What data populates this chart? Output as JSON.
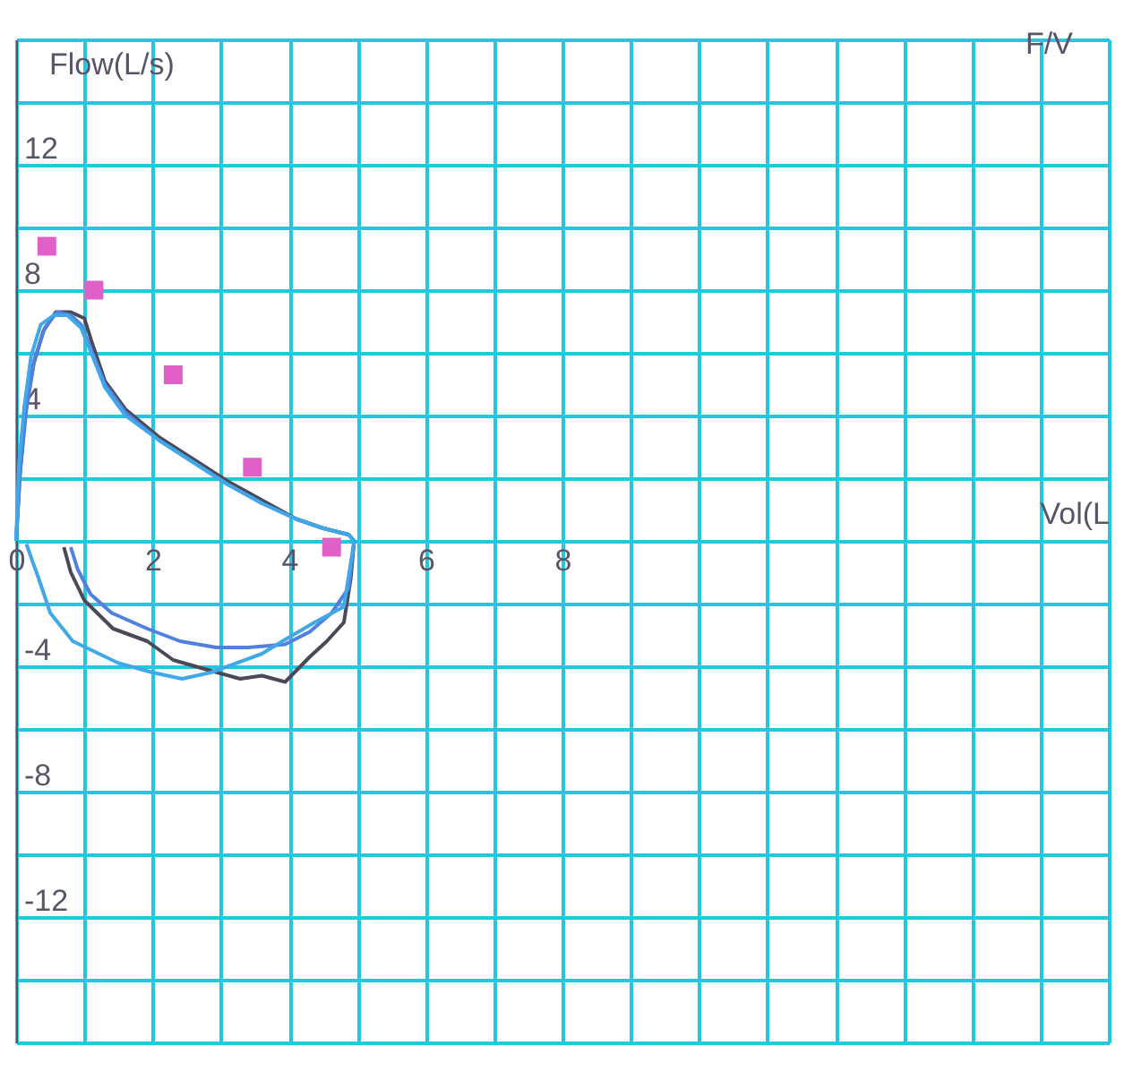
{
  "chart_data": {
    "type": "line",
    "title": "F/V",
    "xlabel": "Vol(L",
    "ylabel": "Flow(L/s)",
    "xlim": [
      0,
      16
    ],
    "xticks": [
      0,
      {
        "value": 1,
        "label": null
      },
      2,
      {
        "value": 3,
        "label": null
      },
      4,
      {
        "value": 5,
        "label": null
      },
      6,
      {
        "value": 7,
        "label": null
      },
      8,
      {
        "value": 9,
        "label": null
      },
      {
        "value": 10,
        "label": null
      },
      {
        "value": 11,
        "label": null
      },
      {
        "value": 12,
        "label": null
      },
      {
        "value": 13,
        "label": null
      },
      {
        "value": 14,
        "label": null
      },
      {
        "value": 15,
        "label": null
      },
      {
        "value": 16,
        "label": null
      }
    ],
    "ylim": [
      -16,
      16
    ],
    "yticks": [
      {
        "value": -16,
        "label": null
      },
      {
        "value": -14,
        "label": null
      },
      -12,
      {
        "value": -10,
        "label": null
      },
      -8,
      {
        "value": -6,
        "label": null
      },
      -4,
      {
        "value": -2,
        "label": null
      },
      {
        "value": 0,
        "label": null
      },
      {
        "value": 2,
        "label": null
      },
      4,
      {
        "value": 6,
        "label": null
      },
      8,
      {
        "value": 10,
        "label": null
      },
      12,
      {
        "value": 14,
        "label": null
      },
      {
        "value": 16,
        "label": null
      }
    ],
    "grid": true,
    "marker": "none",
    "series": [
      {
        "color": "#4b4858",
        "x": [
          0,
          0.05,
          0.13,
          0.25,
          0.4,
          0.58,
          0.8,
          1.0,
          1.1,
          1.3,
          1.6,
          2.1,
          2.6,
          3.1,
          3.6,
          4.1,
          4.5,
          4.87,
          4.95,
          4.9,
          4.8,
          4.55,
          4.3,
          3.94,
          3.6,
          3.28,
          2.78,
          2.3,
          1.92,
          1.42,
          1.0,
          0.8,
          0.7
        ],
        "values": [
          0,
          2.0,
          4.0,
          5.6,
          6.7,
          7.3,
          7.3,
          7.1,
          6.4,
          5.1,
          4.2,
          3.3,
          2.6,
          1.9,
          1.3,
          0.7,
          0.4,
          0.2,
          0,
          -1.2,
          -2.6,
          -3.2,
          -3.7,
          -4.5,
          -4.3,
          -4.4,
          -4.1,
          -3.8,
          -3.2,
          -2.8,
          -1.9,
          -1.0,
          -0.2
        ]
      },
      {
        "color": "#5080e0",
        "x": [
          0,
          0.06,
          0.15,
          0.27,
          0.42,
          0.6,
          0.8,
          0.95,
          1.1,
          1.3,
          1.6,
          2.1,
          2.6,
          3.1,
          3.6,
          4.1,
          4.5,
          4.87,
          4.95,
          4.87,
          4.62,
          4.3,
          3.94,
          3.4,
          2.93,
          2.4,
          1.92,
          1.4,
          1.09,
          0.9,
          0.8
        ],
        "values": [
          0,
          2.2,
          4.2,
          5.8,
          6.8,
          7.3,
          7.2,
          6.9,
          6.1,
          5.0,
          4.1,
          3.2,
          2.5,
          1.8,
          1.2,
          0.7,
          0.4,
          0.2,
          0,
          -1.5,
          -2.3,
          -2.9,
          -3.3,
          -3.4,
          -3.4,
          -3.2,
          -2.8,
          -2.3,
          -1.7,
          -0.9,
          -0.2
        ]
      },
      {
        "color": "#40a8e8",
        "x": [
          0,
          0.04,
          0.12,
          0.22,
          0.36,
          0.55,
          0.75,
          0.95,
          1.1,
          1.3,
          1.6,
          2.1,
          2.6,
          3.1,
          3.6,
          4.1,
          4.5,
          4.87,
          4.95,
          4.8,
          4.37,
          3.9,
          3.6,
          2.85,
          2.43,
          2.0,
          1.5,
          0.83,
          0.5,
          0.33,
          0.15
        ],
        "values": [
          0,
          2.4,
          4.3,
          5.9,
          6.9,
          7.2,
          7.2,
          6.8,
          6.0,
          4.9,
          4.0,
          3.2,
          2.5,
          1.8,
          1.2,
          0.7,
          0.4,
          0.2,
          0,
          -2.1,
          -2.6,
          -3.2,
          -3.6,
          -4.2,
          -4.4,
          -4.2,
          -3.9,
          -3.2,
          -2.3,
          -1.2,
          -0.1
        ]
      },
      {
        "type": "scatter",
        "marker": "square",
        "color": "#e060c8",
        "x": [
          0.45,
          1.14,
          2.3,
          3.46,
          4.62
        ],
        "values": [
          9.4,
          8.0,
          5.3,
          2.35,
          -0.2
        ]
      }
    ]
  }
}
